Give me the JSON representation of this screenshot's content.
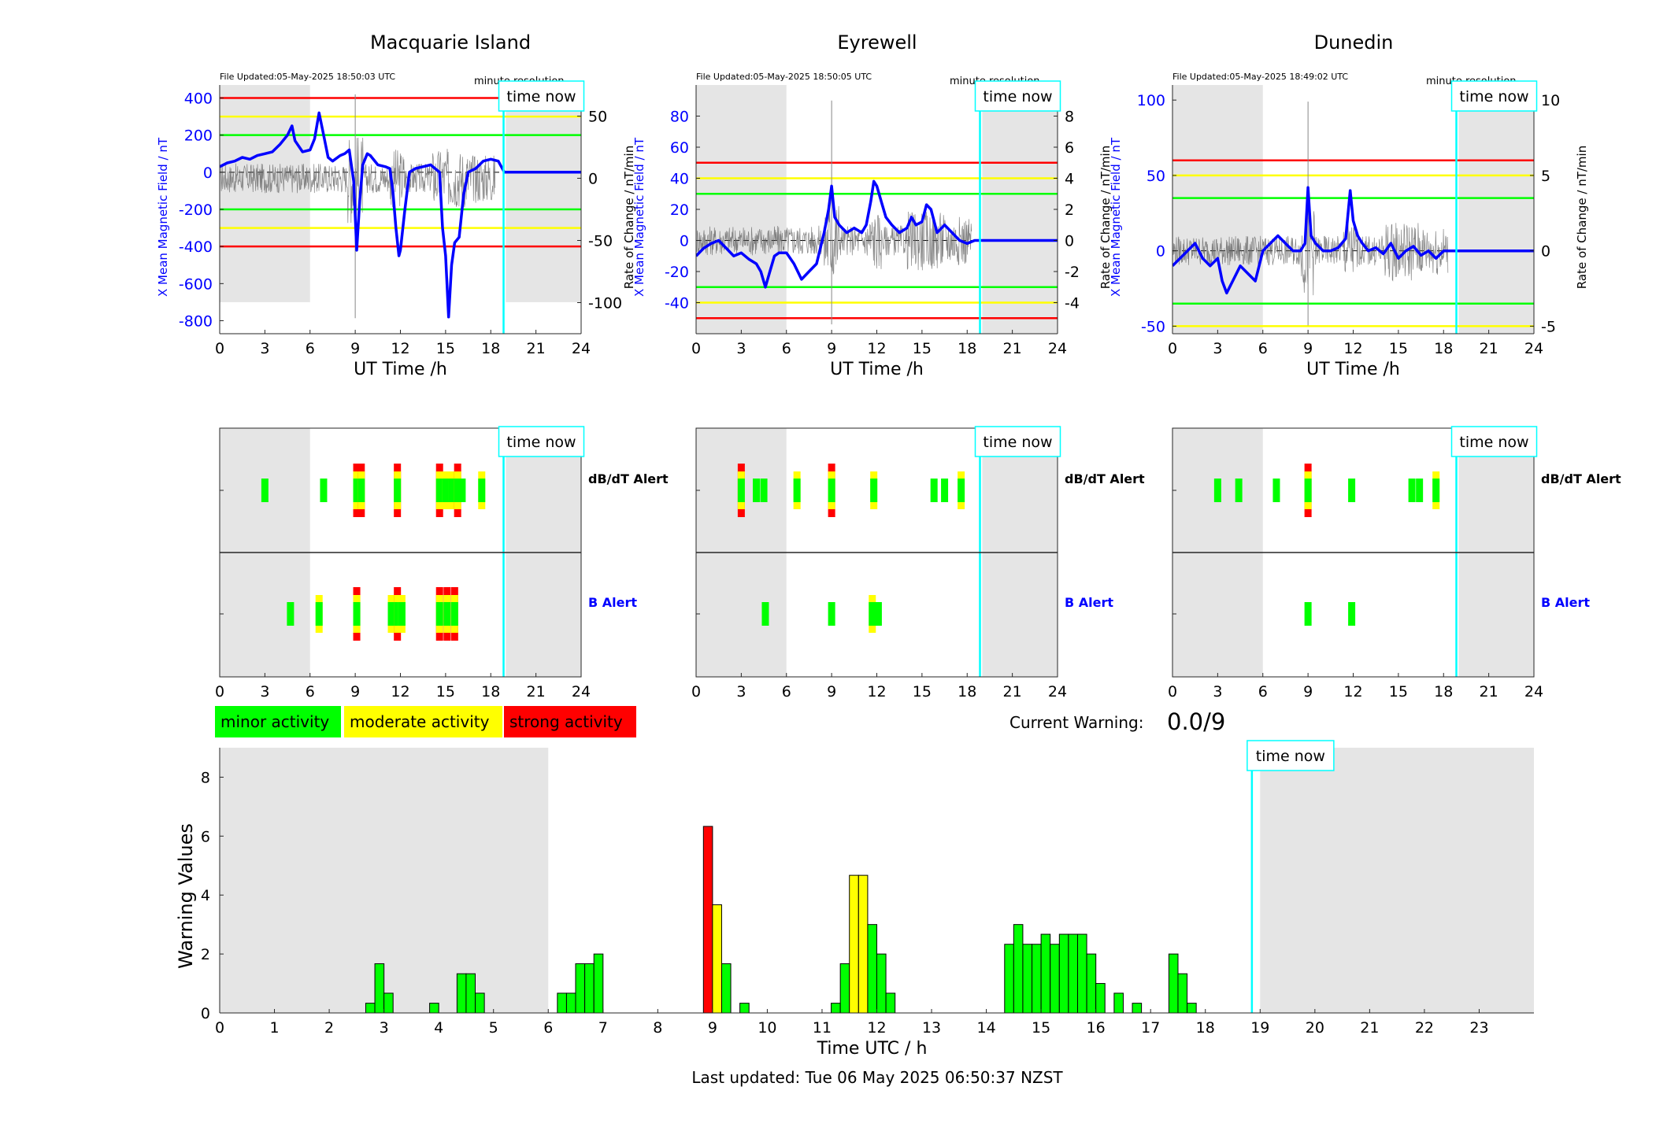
{
  "colors": {
    "blue": "#0000ff",
    "red": "#ff0000",
    "yellow": "#ffff00",
    "green": "#00ff00",
    "cyan": "#00ffff",
    "night": "#e5e5e5",
    "axis": "#262626"
  },
  "common": {
    "ut_xlabel": "UT Time /h",
    "time_now_label": "time now",
    "resolution_label": "minute resolution",
    "y1_label": "X Mean Magnetic Field / nT",
    "y2_label": "Rate of Change / nT/min",
    "dbdt_alert_label": "dB/dT Alert",
    "b_alert_label": "B Alert",
    "time_now_hour": 18.85,
    "time_ticks": [
      "0",
      "3",
      "6",
      "9",
      "12",
      "15",
      "18",
      "21",
      "24"
    ]
  },
  "legend": {
    "minor": "minor activity",
    "moderate": "moderate activity",
    "strong": "strong activity"
  },
  "current_warning": {
    "label": "Current Warning:",
    "value": "0.0/9"
  },
  "footer": {
    "last_updated": "Last updated: Tue 06 May 2025 06:50:37 NZST"
  },
  "chart_data": [
    {
      "type": "line",
      "title": "Macquarie Island",
      "file_updated": "File Updated:05-May-2025 18:50:03 UTC",
      "xlim": [
        0,
        24
      ],
      "ylim": [
        -870,
        470
      ],
      "y2lim": [
        -125,
        75
      ],
      "y_ticks": [
        "400",
        "200",
        "0",
        "-200",
        "-400",
        "-600",
        "-800"
      ],
      "y2_ticks": [
        "50",
        "0",
        "-50",
        "-100"
      ],
      "night_shading": [
        [
          0,
          6
        ],
        [
          19,
          24
        ]
      ],
      "night_shading_ymin": -700,
      "thresholds": [
        {
          "value": 400,
          "level": "strong"
        },
        {
          "value": 300,
          "level": "moderate"
        },
        {
          "value": 200,
          "level": "minor"
        },
        {
          "value": -200,
          "level": "minor"
        },
        {
          "value": -300,
          "level": "moderate"
        },
        {
          "value": -400,
          "level": "strong"
        }
      ],
      "series": [
        {
          "role": "x_mean",
          "x": [
            0,
            0.5,
            1,
            1.5,
            2,
            2.5,
            3,
            3.5,
            4,
            4.5,
            4.8,
            5,
            5.5,
            6,
            6.3,
            6.6,
            6.9,
            7.2,
            7.5,
            8,
            8.3,
            8.6,
            8.9,
            9.1,
            9.3,
            9.5,
            9.8,
            10,
            10.5,
            11,
            11.3,
            11.5,
            11.7,
            11.9,
            12,
            12.3,
            12.6,
            13,
            13.5,
            14,
            14.3,
            14.6,
            14.8,
            15,
            15.2,
            15.4,
            15.6,
            15.9,
            16.2,
            16.5,
            17,
            17.5,
            18,
            18.5,
            18.9,
            24
          ],
          "y": [
            30,
            50,
            60,
            80,
            70,
            90,
            100,
            110,
            150,
            200,
            250,
            170,
            110,
            120,
            180,
            320,
            200,
            80,
            60,
            90,
            100,
            120,
            -50,
            -420,
            -150,
            40,
            100,
            90,
            40,
            30,
            20,
            -100,
            -300,
            -450,
            -420,
            -200,
            0,
            20,
            30,
            40,
            20,
            0,
            -300,
            -450,
            -780,
            -500,
            -380,
            -350,
            -120,
            0,
            20,
            60,
            70,
            60,
            0,
            0
          ]
        },
        {
          "role": "rate_of_change",
          "x": [],
          "y": []
        }
      ]
    },
    {
      "type": "line",
      "title": "Eyrewell",
      "file_updated": "File Updated:05-May-2025 18:50:05 UTC",
      "xlim": [
        0,
        24
      ],
      "ylim": [
        -60,
        100
      ],
      "y2lim": [
        -6,
        10
      ],
      "y_ticks": [
        "80",
        "60",
        "40",
        "20",
        "0",
        "-20",
        "-40"
      ],
      "y2_ticks": [
        "8",
        "6",
        "4",
        "2",
        "0",
        "-2",
        "-4"
      ],
      "night_shading": [
        [
          0,
          6
        ],
        [
          19,
          24
        ]
      ],
      "night_shading_ymin": -60,
      "thresholds": [
        {
          "value": 50,
          "level": "strong"
        },
        {
          "value": 40,
          "level": "moderate"
        },
        {
          "value": 30,
          "level": "minor"
        },
        {
          "value": -30,
          "level": "minor"
        },
        {
          "value": -40,
          "level": "moderate"
        },
        {
          "value": -50,
          "level": "strong"
        }
      ],
      "series": [
        {
          "role": "x_mean",
          "x": [
            0,
            0.5,
            1,
            1.5,
            2,
            2.5,
            3,
            3.5,
            4,
            4.3,
            4.6,
            4.9,
            5.2,
            5.5,
            6,
            6.5,
            7,
            7.5,
            8,
            8.5,
            8.8,
            9,
            9.2,
            9.5,
            10,
            10.5,
            11,
            11.3,
            11.6,
            11.8,
            12,
            12.3,
            12.6,
            13,
            13.5,
            14,
            14.3,
            14.6,
            15,
            15.3,
            15.6,
            16,
            16.5,
            17,
            17.5,
            18,
            18.5,
            18.9,
            24
          ],
          "y": [
            -10,
            -5,
            -2,
            0,
            -5,
            -10,
            -8,
            -12,
            -15,
            -20,
            -30,
            -20,
            -10,
            -8,
            -8,
            -15,
            -25,
            -20,
            -15,
            5,
            20,
            35,
            15,
            10,
            5,
            8,
            5,
            10,
            25,
            38,
            35,
            25,
            15,
            10,
            5,
            8,
            15,
            10,
            12,
            23,
            20,
            5,
            10,
            5,
            0,
            -2,
            0,
            0,
            0
          ]
        },
        {
          "role": "rate_of_change",
          "x": [],
          "y": []
        }
      ]
    },
    {
      "type": "line",
      "title": "Dunedin",
      "file_updated": "File Updated:05-May-2025 18:49:02 UTC",
      "xlim": [
        0,
        24
      ],
      "ylim": [
        -55,
        110
      ],
      "y2lim": [
        -5.5,
        11
      ],
      "y_ticks": [
        "100",
        "50",
        "0",
        "-50"
      ],
      "y2_ticks": [
        "10",
        "5",
        "0",
        "-5"
      ],
      "night_shading": [
        [
          0,
          6
        ],
        [
          19,
          24
        ]
      ],
      "night_shading_ymin": -55,
      "thresholds": [
        {
          "value": 60,
          "level": "strong"
        },
        {
          "value": 50,
          "level": "moderate"
        },
        {
          "value": 35,
          "level": "minor"
        },
        {
          "value": -35,
          "level": "minor"
        },
        {
          "value": -50,
          "level": "moderate"
        },
        {
          "value": -60,
          "level": "strong"
        }
      ],
      "series": [
        {
          "role": "x_mean",
          "x": [
            0,
            0.5,
            1,
            1.5,
            2,
            2.5,
            3,
            3.3,
            3.6,
            4,
            4.5,
            5,
            5.5,
            6,
            6.5,
            7,
            7.5,
            8,
            8.5,
            8.8,
            9,
            9.2,
            9.5,
            10,
            10.5,
            11,
            11.5,
            11.8,
            12,
            12.3,
            12.6,
            13,
            13.5,
            14,
            14.5,
            15,
            15.5,
            16,
            16.5,
            17,
            17.5,
            18,
            18.5,
            18.9,
            24
          ],
          "y": [
            -10,
            -5,
            0,
            5,
            -5,
            -10,
            -5,
            -20,
            -28,
            -20,
            -10,
            -15,
            -20,
            0,
            5,
            10,
            5,
            0,
            0,
            5,
            42,
            10,
            5,
            0,
            0,
            2,
            8,
            40,
            20,
            10,
            5,
            0,
            2,
            -2,
            5,
            -5,
            0,
            3,
            -3,
            0,
            -5,
            0,
            0,
            0,
            0
          ]
        },
        {
          "role": "rate_of_change",
          "x": [],
          "y": []
        }
      ]
    },
    {
      "type": "bar",
      "subtype": "alert-timeline",
      "xlim": [
        0,
        24
      ],
      "rows": [
        "dB/dT Alert",
        "B Alert"
      ],
      "panels": [
        {
          "station": "Macquarie Island",
          "dbdt": [
            [
              3,
              "minor"
            ],
            [
              6.9,
              "minor"
            ],
            [
              9.1,
              "strong"
            ],
            [
              9.4,
              "strong"
            ],
            [
              11.8,
              "strong"
            ],
            [
              14.6,
              "strong"
            ],
            [
              15,
              "moderate"
            ],
            [
              15.4,
              "moderate"
            ],
            [
              15.8,
              "strong"
            ],
            [
              16.1,
              "minor"
            ],
            [
              17.4,
              "moderate"
            ]
          ],
          "b": [
            [
              4.7,
              "minor"
            ],
            [
              6.6,
              "moderate"
            ],
            [
              9.1,
              "strong"
            ],
            [
              11.4,
              "moderate"
            ],
            [
              11.8,
              "strong"
            ],
            [
              12.1,
              "moderate"
            ],
            [
              14.6,
              "strong"
            ],
            [
              15.1,
              "strong"
            ],
            [
              15.6,
              "strong"
            ]
          ]
        },
        {
          "station": "Eyrewell",
          "dbdt": [
            [
              3,
              "strong"
            ],
            [
              4,
              "minor"
            ],
            [
              4.5,
              "minor"
            ],
            [
              6.7,
              "moderate"
            ],
            [
              9,
              "strong"
            ],
            [
              11.8,
              "moderate"
            ],
            [
              15.8,
              "minor"
            ],
            [
              16.5,
              "minor"
            ],
            [
              17.6,
              "moderate"
            ]
          ],
          "b": [
            [
              4.6,
              "minor"
            ],
            [
              9,
              "minor"
            ],
            [
              11.7,
              "moderate"
            ],
            [
              12.1,
              "minor"
            ]
          ]
        },
        {
          "station": "Dunedin",
          "dbdt": [
            [
              3,
              "minor"
            ],
            [
              4.4,
              "minor"
            ],
            [
              6.9,
              "minor"
            ],
            [
              9,
              "strong"
            ],
            [
              11.9,
              "minor"
            ],
            [
              15.9,
              "minor"
            ],
            [
              16.4,
              "minor"
            ],
            [
              17.5,
              "moderate"
            ]
          ],
          "b": [
            [
              9,
              "minor"
            ],
            [
              11.9,
              "minor"
            ]
          ]
        }
      ]
    },
    {
      "type": "bar",
      "subtype": "warning-values",
      "xlabel": "Time UTC / h",
      "ylabel": "Warning Values",
      "xlim": [
        0,
        24
      ],
      "ylim": [
        0,
        9
      ],
      "x_ticks": [
        "0",
        "1",
        "2",
        "3",
        "4",
        "5",
        "6",
        "7",
        "8",
        "9",
        "10",
        "11",
        "12",
        "13",
        "14",
        "15",
        "16",
        "17",
        "18",
        "19",
        "20",
        "21",
        "22",
        "23"
      ],
      "y_ticks": [
        "0",
        "2",
        "4",
        "6",
        "8"
      ],
      "night_shading": [
        [
          0,
          6
        ],
        [
          19,
          24
        ]
      ],
      "bar_width_h": 0.1667,
      "bars": [
        {
          "x": 2.75,
          "v": 0.33,
          "level": "minor"
        },
        {
          "x": 2.917,
          "v": 1.67,
          "level": "minor"
        },
        {
          "x": 3.083,
          "v": 0.67,
          "level": "minor"
        },
        {
          "x": 3.917,
          "v": 0.33,
          "level": "minor"
        },
        {
          "x": 4.417,
          "v": 1.33,
          "level": "minor"
        },
        {
          "x": 4.583,
          "v": 1.33,
          "level": "minor"
        },
        {
          "x": 4.75,
          "v": 0.67,
          "level": "minor"
        },
        {
          "x": 6.25,
          "v": 0.67,
          "level": "minor"
        },
        {
          "x": 6.417,
          "v": 0.67,
          "level": "minor"
        },
        {
          "x": 6.583,
          "v": 1.67,
          "level": "minor"
        },
        {
          "x": 6.75,
          "v": 1.67,
          "level": "minor"
        },
        {
          "x": 6.917,
          "v": 2.0,
          "level": "minor"
        },
        {
          "x": 8.917,
          "v": 6.33,
          "level": "strong"
        },
        {
          "x": 9.083,
          "v": 3.67,
          "level": "moderate"
        },
        {
          "x": 9.25,
          "v": 1.67,
          "level": "minor"
        },
        {
          "x": 9.583,
          "v": 0.33,
          "level": "minor"
        },
        {
          "x": 11.25,
          "v": 0.33,
          "level": "minor"
        },
        {
          "x": 11.417,
          "v": 1.67,
          "level": "minor"
        },
        {
          "x": 11.583,
          "v": 4.67,
          "level": "moderate"
        },
        {
          "x": 11.75,
          "v": 4.67,
          "level": "moderate"
        },
        {
          "x": 11.917,
          "v": 3.0,
          "level": "minor"
        },
        {
          "x": 12.083,
          "v": 2.0,
          "level": "minor"
        },
        {
          "x": 12.25,
          "v": 0.67,
          "level": "minor"
        },
        {
          "x": 14.417,
          "v": 2.33,
          "level": "minor"
        },
        {
          "x": 14.583,
          "v": 3.0,
          "level": "minor"
        },
        {
          "x": 14.75,
          "v": 2.33,
          "level": "minor"
        },
        {
          "x": 14.917,
          "v": 2.33,
          "level": "minor"
        },
        {
          "x": 15.083,
          "v": 2.67,
          "level": "minor"
        },
        {
          "x": 15.25,
          "v": 2.33,
          "level": "minor"
        },
        {
          "x": 15.417,
          "v": 2.67,
          "level": "minor"
        },
        {
          "x": 15.583,
          "v": 2.67,
          "level": "minor"
        },
        {
          "x": 15.75,
          "v": 2.67,
          "level": "minor"
        },
        {
          "x": 15.917,
          "v": 2.0,
          "level": "minor"
        },
        {
          "x": 16.083,
          "v": 1.0,
          "level": "minor"
        },
        {
          "x": 16.417,
          "v": 0.67,
          "level": "minor"
        },
        {
          "x": 16.75,
          "v": 0.33,
          "level": "minor"
        },
        {
          "x": 17.417,
          "v": 2.0,
          "level": "minor"
        },
        {
          "x": 17.583,
          "v": 1.33,
          "level": "minor"
        },
        {
          "x": 17.75,
          "v": 0.33,
          "level": "minor"
        }
      ]
    }
  ]
}
